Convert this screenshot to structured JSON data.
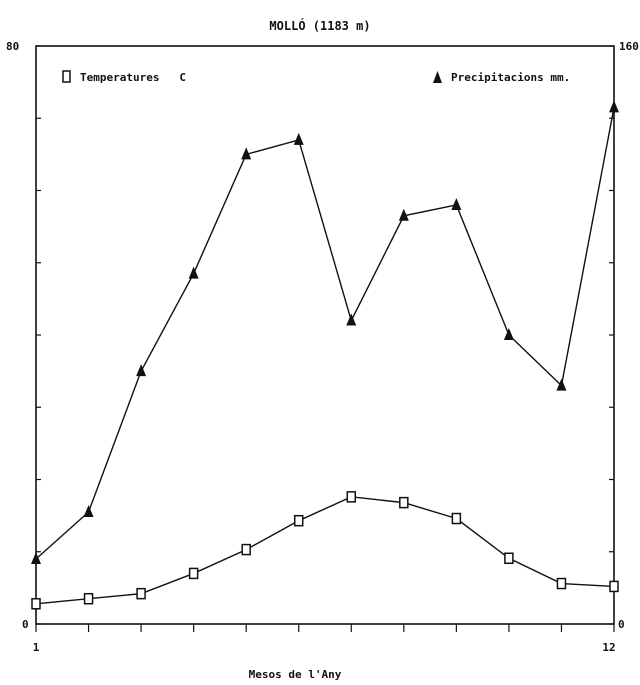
{
  "chart_data": {
    "type": "line",
    "title": "MOLLÓ (1183 m)",
    "xlabel": "Mesos de l'Any",
    "x": [
      1,
      2,
      3,
      4,
      5,
      6,
      7,
      8,
      9,
      10,
      11,
      12
    ],
    "x_tick_labels": [
      "1",
      "12"
    ],
    "y_left": {
      "range": [
        0,
        80
      ],
      "tick_labels": [
        "80",
        "0"
      ]
    },
    "y_right": {
      "range": [
        0,
        160
      ],
      "tick_labels": [
        "160",
        "0"
      ]
    },
    "grid": false,
    "legend": {
      "placement": "top"
    },
    "series": [
      {
        "name": "Temperatures   C",
        "marker": "open-square",
        "axis": "left",
        "values": [
          2.8,
          3.5,
          4.2,
          7.0,
          10.3,
          14.3,
          17.6,
          16.8,
          14.6,
          9.1,
          5.6,
          5.2
        ]
      },
      {
        "name": "Precipitacions mm.",
        "marker": "filled-triangle",
        "axis": "right",
        "values": [
          18,
          31,
          70,
          97,
          130,
          134,
          84,
          113,
          116,
          80,
          66,
          143
        ]
      }
    ],
    "colors": {
      "ink": "#111111",
      "background": "#ffffff"
    }
  }
}
